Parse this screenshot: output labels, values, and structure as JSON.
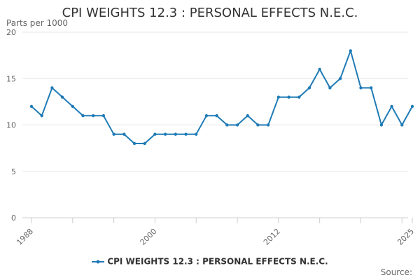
{
  "chart_data": {
    "type": "line",
    "title": "CPI WEIGHTS 12.3 : PERSONAL EFFECTS N.E.C.",
    "ylabel": "Parts per 1000",
    "xlabel": "",
    "ylim": [
      0,
      20
    ],
    "yticks": [
      0,
      5,
      10,
      15,
      20
    ],
    "xlim": [
      1988,
      2025
    ],
    "xtick_labels": [
      "1988",
      "2000",
      "2012",
      "2025"
    ],
    "grid": true,
    "legend": "bottom-center",
    "series": [
      {
        "name": "CPI WEIGHTS 12.3 : PERSONAL EFFECTS N.E.C.",
        "color": "#1f7bb6",
        "x": [
          1988,
          1989,
          1990,
          1991,
          1992,
          1993,
          1994,
          1995,
          1996,
          1997,
          1998,
          1999,
          2000,
          2001,
          2002,
          2003,
          2004,
          2005,
          2006,
          2007,
          2008,
          2009,
          2010,
          2011,
          2012,
          2013,
          2014,
          2015,
          2016,
          2017,
          2018,
          2019,
          2020,
          2021,
          2022,
          2023,
          2024,
          2025
        ],
        "values": [
          12,
          11,
          14,
          13,
          12,
          11,
          11,
          11,
          9,
          9,
          8,
          8,
          9,
          9,
          9,
          9,
          9,
          11,
          11,
          10,
          10,
          11,
          10,
          10,
          13,
          13,
          13,
          14,
          16,
          14,
          15,
          18,
          14,
          14,
          10,
          12,
          10,
          12
        ]
      }
    ]
  },
  "source_label": "Source:"
}
